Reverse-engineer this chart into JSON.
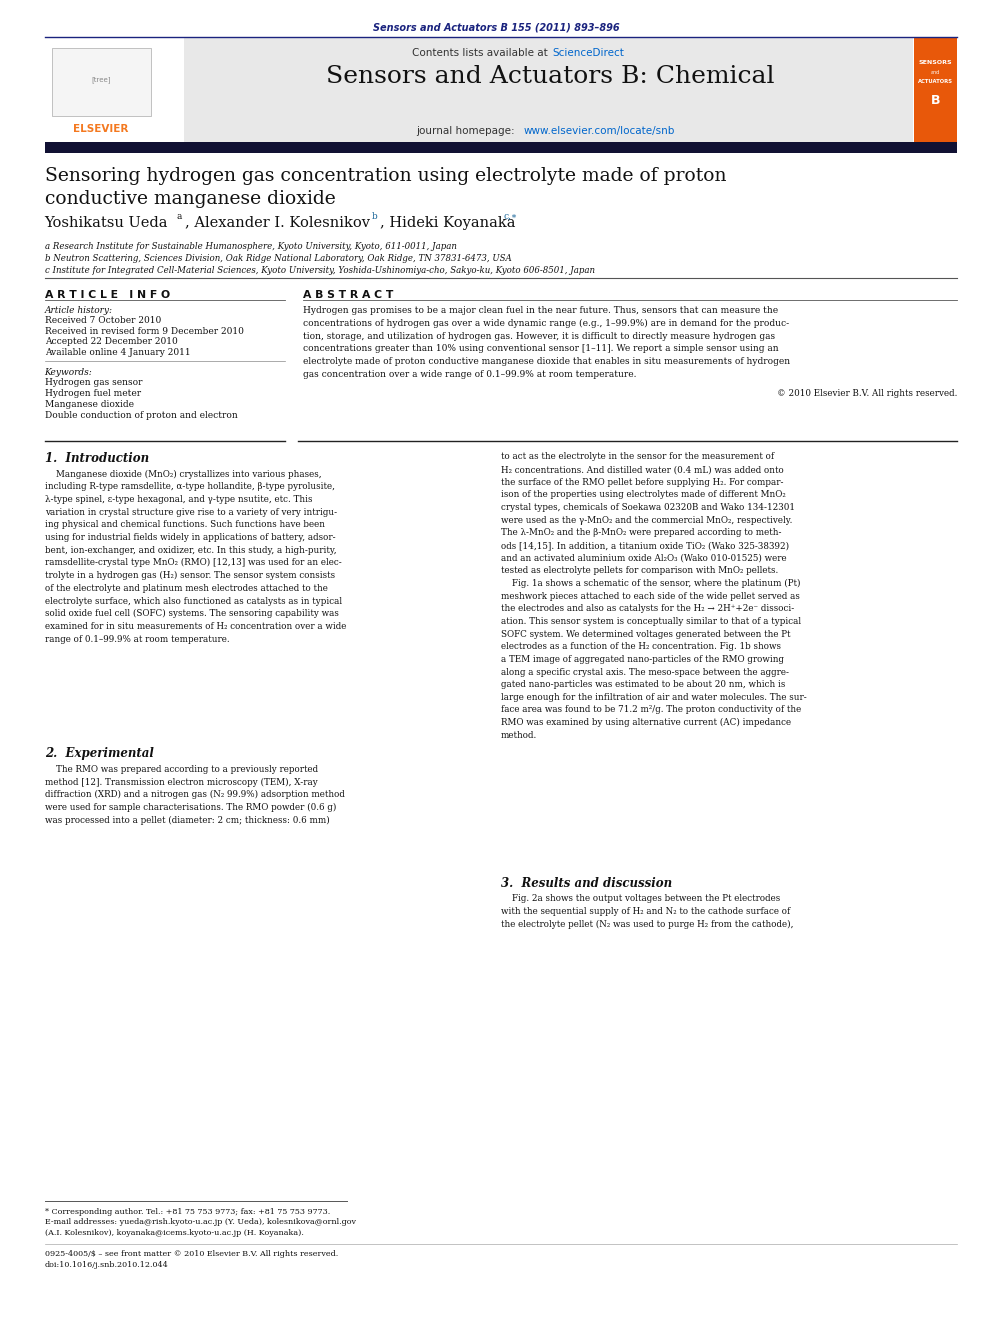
{
  "page_width": 9.92,
  "page_height": 13.23,
  "bg_color": "#ffffff",
  "top_journal_ref": "Sensors and Actuators B 155 (2011) 893–896",
  "journal_ref_color": "#1a237e",
  "header_bg": "#e8e8e8",
  "header_sciencedirect_color": "#0066cc",
  "journal_title": "Sensors and Actuators B: Chemical",
  "journal_homepage_url_color": "#0066cc",
  "article_title": "Sensoring hydrogen gas concentration using electrolyte made of proton\nconductive manganese dioxide",
  "affil_a": "a Research Institute for Sustainable Humanosphere, Kyoto University, Kyoto, 611-0011, Japan",
  "affil_b": "b Neutron Scattering, Sciences Division, Oak Ridge National Laboratory, Oak Ridge, TN 37831-6473, USA",
  "affil_c": "c Institute for Integrated Cell-Material Sciences, Kyoto University, Yoshida-Ushinomiya-cho, Sakyo-ku, Kyoto 606-8501, Japan",
  "section_article_info": "A R T I C L E   I N F O",
  "section_abstract": "A B S T R A C T",
  "article_history_label": "Article history:",
  "received": "Received 7 October 2010",
  "received_revised": "Received in revised form 9 December 2010",
  "accepted": "Accepted 22 December 2010",
  "available": "Available online 4 January 2011",
  "keywords_label": "Keywords:",
  "keywords": [
    "Hydrogen gas sensor",
    "Hydrogen fuel meter",
    "Manganese dioxide",
    "Double conduction of proton and electron"
  ],
  "abstract_text": "Hydrogen gas promises to be a major clean fuel in the near future. Thus, sensors that can measure the\nconcentrations of hydrogen gas over a wide dynamic range (e.g., 1–99.9%) are in demand for the produc-\ntion, storage, and utilization of hydrogen gas. However, it is difficult to directly measure hydrogen gas\nconcentrations greater than 10% using conventional sensor [1–11]. We report a simple sensor using an\nelectrolyte made of proton conductive manganese dioxide that enables in situ measurements of hydrogen\ngas concentration over a wide range of 0.1–99.9% at room temperature.",
  "copyright": "© 2010 Elsevier B.V. All rights reserved.",
  "section1_title": "1.  Introduction",
  "section1_left": "    Manganese dioxide (MnO₂) crystallizes into various phases,\nincluding R-type ramsdellite, α-type hollandite, β-type pyrolusite,\nλ-type spinel, ε-type hexagonal, and γ-type nsutite, etc. This\nvariation in crystal structure give rise to a variety of very intrigu-\ning physical and chemical functions. Such functions have been\nusing for industrial fields widely in applications of battery, adsor-\nbent, ion-exchanger, and oxidizer, etc. In this study, a high-purity,\nramsdellite-crystal type MnO₂ (RMO) [12,13] was used for an elec-\ntrolyte in a hydrogen gas (H₂) sensor. The sensor system consists\nof the electrolyte and platinum mesh electrodes attached to the\nelectrolyte surface, which also functioned as catalysts as in typical\nsolid oxide fuel cell (SOFC) systems. The sensoring capability was\nexamined for in situ measurements of H₂ concentration over a wide\nrange of 0.1–99.9% at room temperature.",
  "section2_title": "2.  Experimental",
  "section2_text": "    The RMO was prepared according to a previously reported\nmethod [12]. Transmission electron microscopy (TEM), X-ray\ndiffraction (XRD) and a nitrogen gas (N₂ 99.9%) adsorption method\nwere used for sample characterisations. The RMO powder (0.6 g)\nwas processed into a pellet (diameter: 2 cm; thickness: 0.6 mm)",
  "section1_right": "to act as the electrolyte in the sensor for the measurement of\nH₂ concentrations. And distilled water (0.4 mL) was added onto\nthe surface of the RMO pellet before supplying H₂. For compar-\nison of the properties using electrolytes made of different MnO₂\ncrystal types, chemicals of Soekawa 02320B and Wako 134-12301\nwere used as the γ-MnO₂ and the commercial MnO₂, respectively.\nThe λ-MnO₂ and the β-MnO₂ were prepared according to meth-\nods [14,15]. In addition, a titanium oxide TiO₂ (Wako 325-38392)\nand an activated aluminium oxide Al₂O₃ (Wako 010-01525) were\ntested as electrolyte pellets for comparison with MnO₂ pellets.\n    Fig. 1a shows a schematic of the sensor, where the platinum (Pt)\nmeshwork pieces attached to each side of the wide pellet served as\nthe electrodes and also as catalysts for the H₂ → 2H⁺+2e⁻ dissoci-\nation. This sensor system is conceptually similar to that of a typical\nSOFC system. We determined voltages generated between the Pt\nelectrodes as a function of the H₂ concentration. Fig. 1b shows\na TEM image of aggregated nano-particles of the RMO growing\nalong a specific crystal axis. The meso-space between the aggre-\ngated nano-particles was estimated to be about 20 nm, which is\nlarge enough for the infiltration of air and water molecules. The sur-\nface area was found to be 71.2 m²/g. The proton conductivity of the\nRMO was examined by using alternative current (AC) impedance\nmethod.",
  "section3_title": "3.  Results and discussion",
  "section3_right": "    Fig. 2a shows the output voltages between the Pt electrodes\nwith the sequential supply of H₂ and N₂ to the cathode surface of\nthe electrolyte pellet (N₂ was used to purge H₂ from the cathode),",
  "footnote_star": "* Corresponding author. Tel.: +81 75 753 9773; fax: +81 75 753 9773.",
  "footnote_email": "E-mail addresses: yueda@rish.kyoto-u.ac.jp (Y. Ueda), kolesnikova@ornl.gov\n(A.I. Kolesnikov), koyanaka@icems.kyoto-u.ac.jp (H. Koyanaka).",
  "bottom_text1": "0925-4005/$ – see front matter © 2010 Elsevier B.V. All rights reserved.",
  "bottom_text2": "doi:10.1016/j.snb.2010.12.044",
  "elsevier_orange": "#f47920",
  "link_blue": "#1a6699"
}
